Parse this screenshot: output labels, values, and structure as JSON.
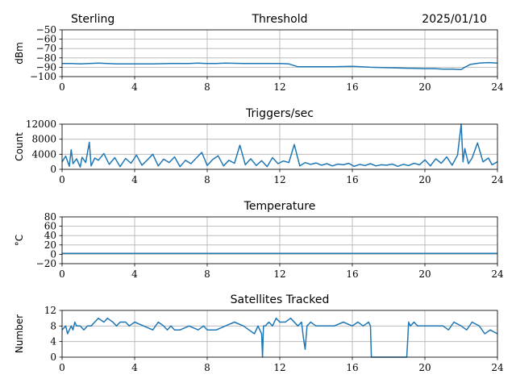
{
  "header": {
    "station": "Sterling",
    "date": "2025/01/10"
  },
  "chart_data": [
    {
      "type": "line",
      "title": "Threshold",
      "xlabel": "",
      "ylabel": "dBm",
      "xlim": [
        0,
        24
      ],
      "ylim": [
        -100,
        -50
      ],
      "xticks": [
        0,
        4,
        8,
        12,
        16,
        20,
        24
      ],
      "yticks": [
        -100,
        -90,
        -80,
        -70,
        -60,
        -50
      ],
      "ytick_labels": [
        "−100",
        "−90",
        "−80",
        "−70",
        "−60",
        "−50"
      ],
      "grid": true,
      "series_color": "#1f77b4",
      "x": [
        0,
        0.5,
        1,
        1.5,
        2,
        2.5,
        3,
        4,
        5,
        6,
        7,
        7.5,
        8,
        8.5,
        9,
        10,
        11,
        12,
        12.5,
        13,
        14,
        15,
        16,
        17,
        18,
        19,
        20,
        20.5,
        21,
        21.5,
        22,
        22.2,
        22.5,
        23,
        23.5,
        24
      ],
      "y": [
        -86,
        -86,
        -86.5,
        -86,
        -85.5,
        -86,
        -86.5,
        -86.5,
        -86.5,
        -86,
        -86,
        -85.5,
        -86,
        -86,
        -85.5,
        -86,
        -86,
        -86,
        -86.5,
        -89.5,
        -89.5,
        -89.5,
        -89,
        -90,
        -90.5,
        -91,
        -91.5,
        -91.5,
        -92,
        -92,
        -92.5,
        -90,
        -87,
        -85.5,
        -85,
        -85.5
      ]
    },
    {
      "type": "line",
      "title": "Triggers/sec",
      "xlabel": "",
      "ylabel": "Count",
      "xlim": [
        0,
        24
      ],
      "ylim": [
        0,
        12000
      ],
      "xticks": [
        0,
        4,
        8,
        12,
        16,
        20,
        24
      ],
      "yticks": [
        0,
        4000,
        8000,
        12000
      ],
      "ytick_labels": [
        "0",
        "4000",
        "8000",
        "12000"
      ],
      "grid": true,
      "series_color": "#1f77b4",
      "x": [
        0,
        0.2,
        0.4,
        0.5,
        0.6,
        0.8,
        1.0,
        1.1,
        1.3,
        1.5,
        1.6,
        1.8,
        2.0,
        2.3,
        2.6,
        2.9,
        3.2,
        3.5,
        3.8,
        4.1,
        4.4,
        4.7,
        5.0,
        5.3,
        5.6,
        5.9,
        6.2,
        6.5,
        6.8,
        7.1,
        7.4,
        7.7,
        8.0,
        8.3,
        8.6,
        8.9,
        9.2,
        9.5,
        9.8,
        10.1,
        10.4,
        10.7,
        11.0,
        11.3,
        11.6,
        11.9,
        12.2,
        12.5,
        12.8,
        13.1,
        13.4,
        13.7,
        14.0,
        14.3,
        14.6,
        14.9,
        15.2,
        15.5,
        15.8,
        16.1,
        16.4,
        16.7,
        17.0,
        17.3,
        17.6,
        17.9,
        18.2,
        18.5,
        18.8,
        19.1,
        19.4,
        19.7,
        20.0,
        20.3,
        20.6,
        20.9,
        21.2,
        21.5,
        21.8,
        22.0,
        22.1,
        22.2,
        22.4,
        22.6,
        22.9,
        23.2,
        23.5,
        23.7,
        24.0
      ],
      "y": [
        2000,
        3500,
        800,
        5200,
        1500,
        2800,
        600,
        3200,
        1800,
        7200,
        900,
        3000,
        2400,
        4200,
        1300,
        3100,
        700,
        2900,
        1600,
        3800,
        1100,
        2500,
        4000,
        900,
        2700,
        1800,
        3300,
        700,
        2400,
        1500,
        3000,
        4500,
        1000,
        2600,
        3600,
        900,
        2400,
        1600,
        6400,
        1200,
        2800,
        1000,
        2300,
        700,
        3100,
        1500,
        2200,
        1800,
        6600,
        900,
        1800,
        1300,
        1700,
        1100,
        1500,
        900,
        1400,
        1200,
        1600,
        800,
        1300,
        1000,
        1500,
        900,
        1200,
        1100,
        1400,
        800,
        1300,
        1000,
        1600,
        1200,
        2500,
        900,
        2800,
        1600,
        3300,
        1100,
        3800,
        12000,
        2000,
        5500,
        1500,
        3000,
        7000,
        2000,
        3000,
        1200,
        2000
      ]
    },
    {
      "type": "line",
      "title": "Temperature",
      "xlabel": "",
      "ylabel": "°C",
      "xlim": [
        0,
        24
      ],
      "ylim": [
        -20,
        80
      ],
      "xticks": [
        0,
        4,
        8,
        12,
        16,
        20,
        24
      ],
      "yticks": [
        -20,
        0,
        20,
        40,
        60,
        80
      ],
      "ytick_labels": [
        "−20",
        "0",
        "20",
        "40",
        "60",
        "80"
      ],
      "grid": true,
      "series_color": "#1f77b4",
      "x": [
        0,
        24
      ],
      "y": [
        2,
        2
      ]
    },
    {
      "type": "line",
      "title": "Satellites Tracked",
      "xlabel": "",
      "ylabel": "Number",
      "xlim": [
        0,
        24
      ],
      "ylim": [
        0,
        12
      ],
      "xticks": [
        0,
        4,
        8,
        12,
        16,
        20,
        24
      ],
      "yticks": [
        0,
        4,
        8,
        12
      ],
      "ytick_labels": [
        "0",
        "4",
        "8",
        "12"
      ],
      "grid": true,
      "series_color": "#1f77b4",
      "x": [
        0,
        0.2,
        0.3,
        0.4,
        0.5,
        0.6,
        0.7,
        0.8,
        1.0,
        1.2,
        1.4,
        1.6,
        1.8,
        2.0,
        2.3,
        2.5,
        2.8,
        3.0,
        3.2,
        3.5,
        3.7,
        4.0,
        4.5,
        5.0,
        5.3,
        5.6,
        5.8,
        6.0,
        6.2,
        6.5,
        7.0,
        7.5,
        7.8,
        8.0,
        8.5,
        9.0,
        9.5,
        10.0,
        10.3,
        10.6,
        10.8,
        11.0,
        11.05,
        11.1,
        11.2,
        11.4,
        11.6,
        11.8,
        12.0,
        12.3,
        12.6,
        13.0,
        13.2,
        13.3,
        13.4,
        13.5,
        13.7,
        14.0,
        14.5,
        15.0,
        15.5,
        16.0,
        16.3,
        16.6,
        16.9,
        17.0,
        17.05,
        18.0,
        19.0,
        19.05,
        19.1,
        19.2,
        19.4,
        19.6,
        20.0,
        20.5,
        21.0,
        21.3,
        21.6,
        22.0,
        22.3,
        22.6,
        23.0,
        23.3,
        23.6,
        24.0
      ],
      "y": [
        7,
        8,
        6,
        7,
        8,
        7,
        9,
        8,
        8,
        7,
        8,
        8,
        9,
        10,
        9,
        10,
        9,
        8,
        9,
        9,
        8,
        9,
        8,
        7,
        9,
        8,
        7,
        8,
        7,
        7,
        8,
        7,
        8,
        7,
        7,
        8,
        9,
        8,
        7,
        6,
        8,
        6,
        0,
        8,
        8,
        9,
        8,
        10,
        9,
        9,
        10,
        8,
        9,
        5,
        2,
        8,
        9,
        8,
        8,
        8,
        9,
        8,
        9,
        8,
        9,
        8,
        0,
        0,
        0,
        4,
        9,
        8,
        9,
        8,
        8,
        8,
        8,
        7,
        9,
        8,
        7,
        9,
        8,
        6,
        7,
        6
      ]
    }
  ]
}
